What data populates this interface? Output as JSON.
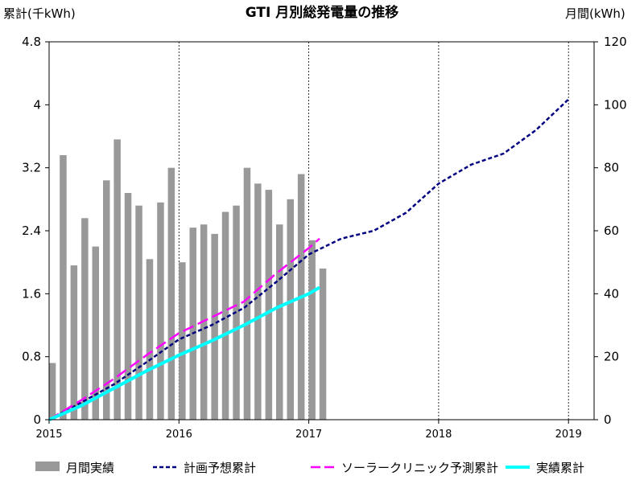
{
  "chart_data": {
    "type": "bar+line",
    "title": "GTI 月別総発電量の推移",
    "left_axis_label": "累計(千kWh)",
    "right_axis_label": "月間(kWh)",
    "left_ticks": [
      "0",
      "0.8",
      "1.6",
      "2.4",
      "3.2",
      "4",
      "4.8"
    ],
    "right_ticks": [
      "0",
      "20",
      "40",
      "60",
      "80",
      "100",
      "120"
    ],
    "left_ylim": [
      0,
      4.8
    ],
    "right_ylim": [
      0,
      120
    ],
    "x_ticks": [
      "2015",
      "2016",
      "2017",
      "2018",
      "2019"
    ],
    "x_range_years": [
      2015.0,
      2019.25
    ],
    "monthly_bars": {
      "name": "月間実績",
      "color": "#999999",
      "x": [
        2015.0,
        2015.0833,
        2015.1667,
        2015.25,
        2015.3333,
        2015.4167,
        2015.5,
        2015.5833,
        2015.6667,
        2015.75,
        2015.8333,
        2015.9167,
        2016.0,
        2016.0833,
        2016.1667,
        2016.25,
        2016.3333,
        2016.4167,
        2016.5,
        2016.5833,
        2016.6667,
        2016.75,
        2016.8333,
        2016.9167,
        2017.0,
        2017.0833
      ],
      "values": [
        18,
        84,
        49,
        64,
        55,
        76,
        89,
        72,
        68,
        51,
        69,
        80,
        50,
        61,
        62,
        59,
        66,
        68,
        80,
        75,
        73,
        62,
        70,
        78,
        57,
        48
      ]
    },
    "series": [
      {
        "name": "計画予想累計",
        "color": "#000080",
        "style": "dotted",
        "x": [
          2015.0,
          2015.25,
          2015.5,
          2015.75,
          2016.0,
          2016.25,
          2016.5,
          2016.75,
          2017.0,
          2017.25,
          2017.5,
          2017.75,
          2018.0,
          2018.25,
          2018.5,
          2018.75,
          2019.0
        ],
        "values": [
          0.0,
          0.22,
          0.45,
          0.73,
          1.02,
          1.2,
          1.42,
          1.75,
          2.1,
          2.3,
          2.4,
          2.63,
          3.0,
          3.24,
          3.38,
          3.68,
          4.07
        ]
      },
      {
        "name": "ソーラークリニック予測累計",
        "color": "#ff00ff",
        "style": "dashed",
        "x": [
          2015.0,
          2015.25,
          2015.5,
          2015.75,
          2016.0,
          2016.25,
          2016.5,
          2016.75,
          2017.0,
          2017.083
        ],
        "values": [
          0.0,
          0.25,
          0.52,
          0.82,
          1.1,
          1.3,
          1.5,
          1.86,
          2.18,
          2.3
        ]
      },
      {
        "name": "実績累計",
        "color": "#00ffff",
        "style": "solid",
        "x": [
          2015.0,
          2015.25,
          2015.5,
          2015.75,
          2016.0,
          2016.25,
          2016.5,
          2016.75,
          2017.0,
          2017.083
        ],
        "values": [
          0.0,
          0.18,
          0.4,
          0.62,
          0.82,
          1.0,
          1.2,
          1.42,
          1.6,
          1.68
        ]
      }
    ],
    "legend": [
      {
        "label": "月間実績",
        "color": "#999999",
        "kind": "bar"
      },
      {
        "label": "計画予想累計",
        "color": "#000080",
        "kind": "dotted"
      },
      {
        "label": "ソーラークリニック予測累計",
        "color": "#ff00ff",
        "kind": "dashed"
      },
      {
        "label": "実績累計",
        "color": "#00ffff",
        "kind": "solid"
      }
    ],
    "legend_position": "bottom",
    "grid": "vertical dotted at year boundaries"
  }
}
